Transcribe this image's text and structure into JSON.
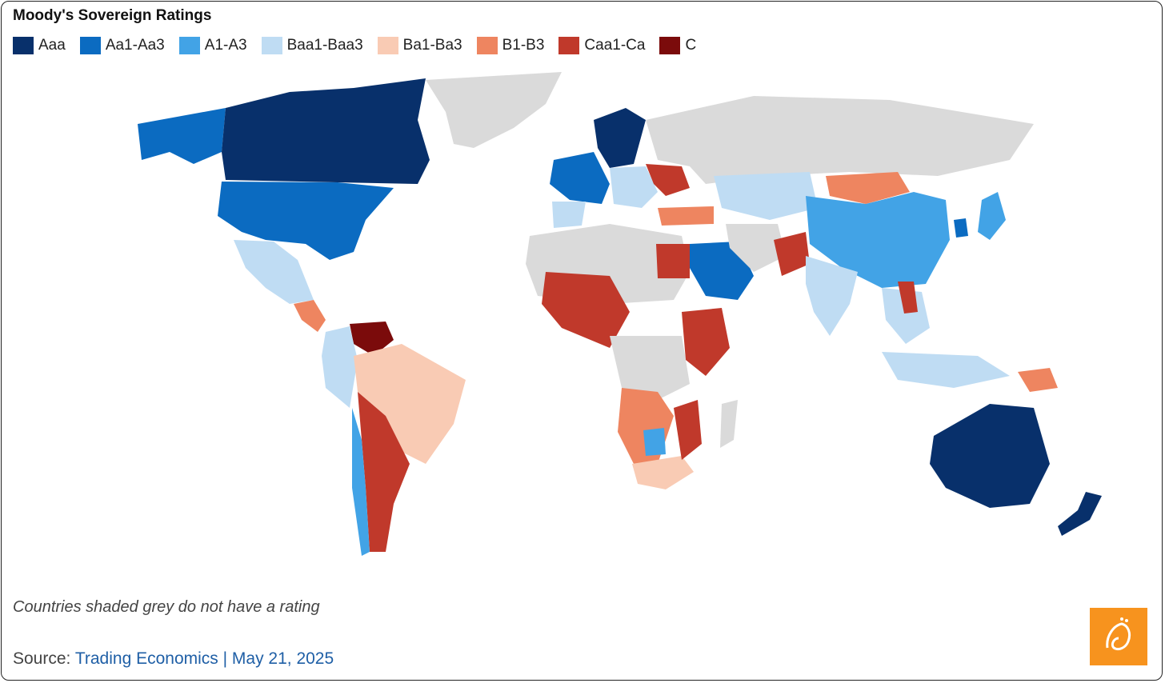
{
  "title": "Moody's Sovereign Ratings",
  "legend": [
    {
      "label": "Aaa",
      "color": "#08306b"
    },
    {
      "label": "Aa1-Aa3",
      "color": "#0b6bc1"
    },
    {
      "label": "A1-A3",
      "color": "#42a3e6"
    },
    {
      "label": "Baa1-Baa3",
      "color": "#bfdcf3"
    },
    {
      "label": "Ba1-Ba3",
      "color": "#f9cbb4"
    },
    {
      "label": "B1-B3",
      "color": "#ee8560"
    },
    {
      "label": "Caa1-Ca",
      "color": "#c0392b"
    },
    {
      "label": "C",
      "color": "#7b0b0b"
    }
  ],
  "no_rating_color": "#dadada",
  "note": "Countries shaded grey do not have a rating",
  "source": {
    "prefix": "Source: ",
    "link_text": "Trading Economics | May 21, 2025"
  },
  "logo": {
    "name": "broadcaster-logo",
    "color": "#f7931e"
  }
}
